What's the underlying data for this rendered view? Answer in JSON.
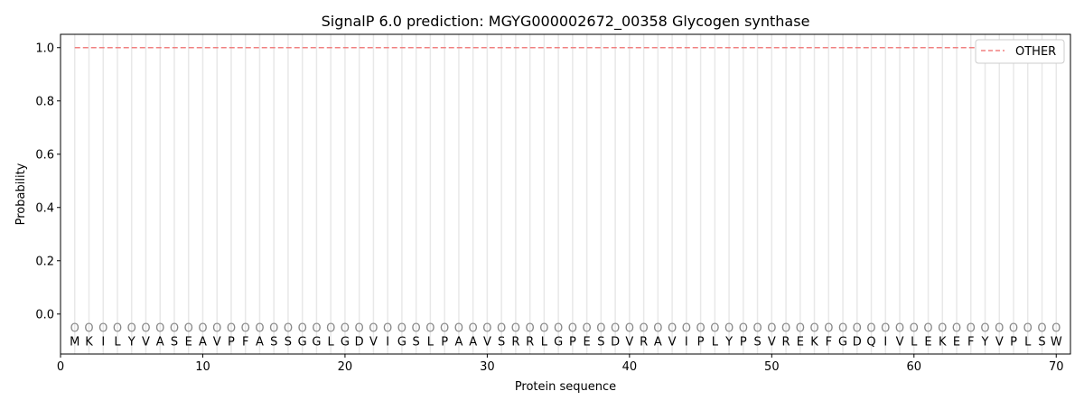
{
  "chart_data": {
    "type": "line",
    "title": "SignalP 6.0 prediction: MGYG000002672_00358 Glycogen synthase",
    "xlabel": "Protein sequence",
    "ylabel": "Probability",
    "xlim": [
      0,
      71
    ],
    "ylim": [
      -0.15,
      1.05
    ],
    "xticks": [
      0,
      10,
      20,
      30,
      40,
      50,
      60,
      70
    ],
    "yticks": [
      0.0,
      0.2,
      0.4,
      0.6,
      0.8,
      1.0
    ],
    "ytick_labels": [
      "0.0",
      "0.2",
      "0.4",
      "0.6",
      "0.8",
      "1.0"
    ],
    "legend": {
      "placement": "top-right",
      "entries": [
        "OTHER"
      ]
    },
    "series": [
      {
        "name": "OTHER",
        "color": "#f08080",
        "style": "dashed",
        "x_start": 1,
        "x_end": 70,
        "value": 1.0
      }
    ],
    "sequence": [
      "M",
      "K",
      "I",
      "L",
      "Y",
      "V",
      "A",
      "S",
      "E",
      "A",
      "V",
      "P",
      "F",
      "A",
      "S",
      "S",
      "G",
      "G",
      "L",
      "G",
      "D",
      "V",
      "I",
      "G",
      "S",
      "L",
      "P",
      "A",
      "A",
      "V",
      "S",
      "R",
      "R",
      "L",
      "G",
      "P",
      "E",
      "S",
      "D",
      "V",
      "R",
      "A",
      "V",
      "I",
      "P",
      "L",
      "Y",
      "P",
      "S",
      "V",
      "R",
      "E",
      "K",
      "F",
      "G",
      "D",
      "Q",
      "I",
      "V",
      "L",
      "E",
      "K",
      "E",
      "F",
      "Y",
      "V",
      "P",
      "L",
      "S",
      "W"
    ],
    "region_label": "O",
    "grid": "vertical lines at each residue"
  }
}
